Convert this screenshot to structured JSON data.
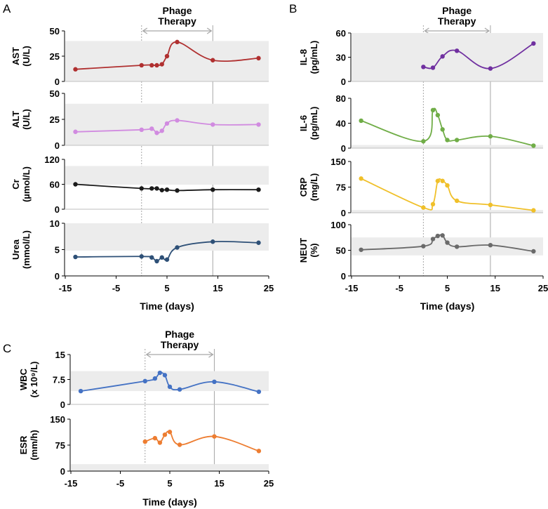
{
  "panels": [
    {
      "id": "A",
      "letter": "A",
      "therapy_label": [
        "Phage",
        "Therapy"
      ],
      "therapy_window": [
        0,
        14
      ],
      "xlabel": "Time (days)",
      "xticks": [
        -15,
        -5,
        5,
        15,
        25
      ],
      "xlim": [
        -15,
        25
      ],
      "subplots": [
        {
          "name": "ast",
          "ylabel": [
            "AST",
            "(U/L)"
          ],
          "ylim": [
            0,
            50
          ],
          "yticks": [
            0,
            25,
            50
          ],
          "normal_range": [
            0,
            40
          ],
          "color": "#b03030",
          "x": [
            -13,
            0,
            2,
            3,
            4,
            5,
            7,
            14,
            23
          ],
          "y": [
            12,
            16,
            16,
            16,
            17,
            25,
            39,
            21,
            23
          ]
        },
        {
          "name": "alt",
          "ylabel": [
            "ALT",
            "(U/L)"
          ],
          "ylim": [
            0,
            50
          ],
          "yticks": [
            0,
            25,
            50
          ],
          "normal_range": [
            0,
            40
          ],
          "color": "#d18be0",
          "x": [
            -13,
            0,
            2,
            3,
            4,
            5,
            7,
            14,
            23
          ],
          "y": [
            13,
            15,
            16,
            12,
            14,
            21,
            24,
            20,
            20
          ]
        },
        {
          "name": "cr",
          "ylabel": [
            "Cr",
            "(µmol/L)"
          ],
          "ylim": [
            0,
            120
          ],
          "yticks": [
            0,
            60,
            120
          ],
          "normal_range": [
            59,
            104
          ],
          "color": "#1a1a1a",
          "x": [
            -13,
            0,
            2,
            3,
            4,
            5,
            7,
            14,
            23
          ],
          "y": [
            60,
            50,
            50,
            50,
            46,
            47,
            45,
            47,
            47
          ]
        },
        {
          "name": "urea",
          "ylabel": [
            "Urea",
            "(mmol/L)"
          ],
          "ylim": [
            0,
            10
          ],
          "yticks": [
            0,
            5,
            10
          ],
          "normal_range": [
            4.8,
            10
          ],
          "color": "#2e5077",
          "x": [
            -13,
            0,
            2,
            3,
            4,
            5,
            7,
            14,
            23
          ],
          "y": [
            3.6,
            3.7,
            3.5,
            2.8,
            3.5,
            3.1,
            5.4,
            6.5,
            6.3
          ]
        }
      ]
    },
    {
      "id": "B",
      "letter": "B",
      "therapy_label": [
        "Phage",
        "Therapy"
      ],
      "therapy_window": [
        0,
        14
      ],
      "xlabel": "Time (days)",
      "xticks": [
        -15,
        -5,
        5,
        15,
        25
      ],
      "xlim": [
        -15,
        25
      ],
      "subplots": [
        {
          "name": "il8",
          "ylabel": [
            "IL-8",
            "(pg/mL)"
          ],
          "ylim": [
            0,
            60
          ],
          "yticks": [
            0,
            30,
            60
          ],
          "normal_range": [
            0,
            60
          ],
          "color": "#7030a0",
          "x": [
            0,
            2,
            4,
            7,
            14,
            23
          ],
          "y": [
            18,
            17,
            31,
            38,
            16,
            47
          ]
        },
        {
          "name": "il6",
          "ylabel": [
            "IL-6",
            "(pg/mL)"
          ],
          "ylim": [
            0,
            80
          ],
          "yticks": [
            0,
            40,
            80
          ],
          "normal_range": [
            0,
            5
          ],
          "color": "#70ad47",
          "x": [
            -13,
            0,
            2,
            3,
            4,
            5,
            7,
            14,
            23
          ],
          "y": [
            44,
            11,
            61,
            53,
            30,
            13,
            13,
            19,
            4
          ]
        },
        {
          "name": "crp",
          "ylabel": [
            "CRP",
            "(mg/L)"
          ],
          "ylim": [
            0,
            150
          ],
          "yticks": [
            0,
            75,
            150
          ],
          "normal_range": [
            0,
            8
          ],
          "color": "#f0c02a",
          "x": [
            -13,
            0,
            2,
            3,
            4,
            5,
            7,
            14,
            23
          ],
          "y": [
            100,
            15,
            25,
            93,
            93,
            80,
            35,
            23,
            7
          ]
        },
        {
          "name": "neut",
          "ylabel": [
            "NEUT",
            "(%)"
          ],
          "ylim": [
            0,
            100
          ],
          "yticks": [
            0,
            50,
            100
          ],
          "normal_range": [
            40,
            75
          ],
          "color": "#6a6a6a",
          "x": [
            -13,
            0,
            2,
            3,
            4,
            5,
            7,
            14,
            23
          ],
          "y": [
            51,
            58,
            72,
            78,
            79,
            65,
            57,
            60,
            48
          ]
        }
      ]
    },
    {
      "id": "C",
      "letter": "C",
      "therapy_label": [
        "Phage",
        "Therapy"
      ],
      "therapy_window": [
        0,
        14
      ],
      "xlabel": "Time (days)",
      "xticks": [
        -15,
        -5,
        5,
        15,
        25
      ],
      "xlim": [
        -15,
        25
      ],
      "subplots": [
        {
          "name": "wbc",
          "ylabel": [
            "WBC",
            "(x 10⁹/L)"
          ],
          "ylim": [
            0,
            15
          ],
          "yticks": [
            0,
            7.5,
            15
          ],
          "ytick_labels": [
            "0",
            "7.5",
            "15"
          ],
          "normal_range": [
            4,
            10
          ],
          "color": "#4472c4",
          "x": [
            -13,
            0,
            2,
            3,
            4,
            5,
            7,
            14,
            23
          ],
          "y": [
            4.0,
            7.0,
            7.8,
            9.5,
            8.8,
            5.3,
            4.5,
            6.8,
            3.8
          ]
        },
        {
          "name": "esr",
          "ylabel": [
            "ESR",
            "(mm/h)"
          ],
          "ylim": [
            0,
            150
          ],
          "yticks": [
            0,
            75,
            150
          ],
          "normal_range": [
            0,
            20
          ],
          "color": "#ed7d31",
          "x": [
            0,
            2,
            3,
            4,
            5,
            7,
            14,
            23
          ],
          "y": [
            85,
            95,
            82,
            105,
            113,
            76,
            100,
            58
          ]
        }
      ]
    }
  ],
  "chart_data": [
    {
      "type": "line",
      "panel": "A",
      "xlabel": "Time (days)",
      "xlim": [
        -15,
        25
      ],
      "series": [
        {
          "name": "AST (U/L)",
          "x": [
            -13,
            0,
            2,
            3,
            4,
            5,
            7,
            14,
            23
          ],
          "values": [
            12,
            16,
            16,
            16,
            17,
            25,
            39,
            21,
            23
          ]
        },
        {
          "name": "ALT (U/L)",
          "x": [
            -13,
            0,
            2,
            3,
            4,
            5,
            7,
            14,
            23
          ],
          "values": [
            13,
            15,
            16,
            12,
            14,
            21,
            24,
            20,
            20
          ]
        },
        {
          "name": "Cr (µmol/L)",
          "x": [
            -13,
            0,
            2,
            3,
            4,
            5,
            7,
            14,
            23
          ],
          "values": [
            60,
            50,
            50,
            50,
            46,
            47,
            45,
            47,
            47
          ]
        },
        {
          "name": "Urea (mmol/L)",
          "x": [
            -13,
            0,
            2,
            3,
            4,
            5,
            7,
            14,
            23
          ],
          "values": [
            3.6,
            3.7,
            3.5,
            2.8,
            3.5,
            3.1,
            5.4,
            6.5,
            6.3
          ]
        }
      ]
    },
    {
      "type": "line",
      "panel": "B",
      "xlabel": "Time (days)",
      "xlim": [
        -15,
        25
      ],
      "series": [
        {
          "name": "IL-8 (pg/mL)",
          "x": [
            0,
            2,
            4,
            7,
            14,
            23
          ],
          "values": [
            18,
            17,
            31,
            38,
            16,
            47
          ]
        },
        {
          "name": "IL-6 (pg/mL)",
          "x": [
            -13,
            0,
            2,
            3,
            4,
            5,
            7,
            14,
            23
          ],
          "values": [
            44,
            11,
            61,
            53,
            30,
            13,
            13,
            19,
            4
          ]
        },
        {
          "name": "CRP (mg/L)",
          "x": [
            -13,
            0,
            2,
            3,
            4,
            5,
            7,
            14,
            23
          ],
          "values": [
            100,
            15,
            25,
            93,
            93,
            80,
            35,
            23,
            7
          ]
        },
        {
          "name": "NEUT (%)",
          "x": [
            -13,
            0,
            2,
            3,
            4,
            5,
            7,
            14,
            23
          ],
          "values": [
            51,
            58,
            72,
            78,
            79,
            65,
            57,
            60,
            48
          ]
        }
      ]
    },
    {
      "type": "line",
      "panel": "C",
      "xlabel": "Time (days)",
      "xlim": [
        -15,
        25
      ],
      "series": [
        {
          "name": "WBC (x 10⁹/L)",
          "x": [
            -13,
            0,
            2,
            3,
            4,
            5,
            7,
            14,
            23
          ],
          "values": [
            4.0,
            7.0,
            7.8,
            9.5,
            8.8,
            5.3,
            4.5,
            6.8,
            3.8
          ]
        },
        {
          "name": "ESR (mm/h)",
          "x": [
            0,
            2,
            3,
            4,
            5,
            7,
            14,
            23
          ],
          "values": [
            85,
            95,
            82,
            105,
            113,
            76,
            100,
            58
          ]
        }
      ]
    }
  ]
}
